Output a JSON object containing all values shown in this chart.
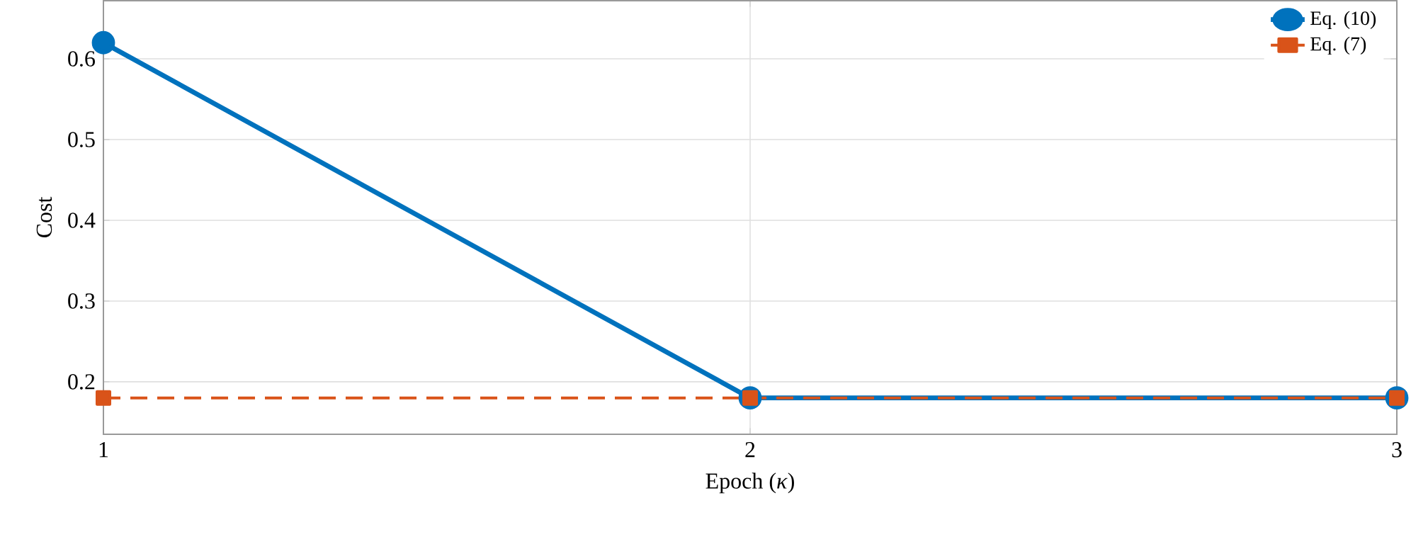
{
  "chart_data": {
    "type": "line",
    "xlabel": "Epoch (*κ*)",
    "ylabel": "Cost",
    "x": [
      1,
      2,
      3
    ],
    "series": [
      {
        "name": "Eq. (10)",
        "color": "#0072bd",
        "values": [
          0.62,
          0.18,
          0.18
        ],
        "marker": "circle",
        "line_style": "solid"
      },
      {
        "name": "Eq. (7)",
        "color": "#d95319",
        "values": [
          0.18,
          0.18,
          0.18
        ],
        "marker": "square",
        "line_style": "dashed"
      }
    ],
    "xlim": [
      1,
      3
    ],
    "xticks": [
      1,
      2,
      3
    ],
    "ylim": [
      0.135,
      0.672
    ],
    "yticks": [
      0.2,
      0.3,
      0.4,
      0.5,
      0.6
    ],
    "grid": true,
    "legend": "top right"
  }
}
